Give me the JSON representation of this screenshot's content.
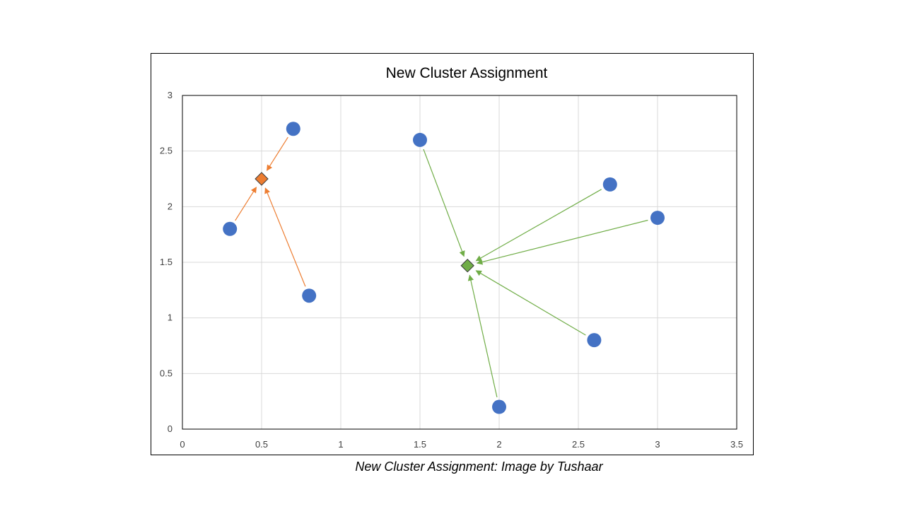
{
  "chart_data": {
    "type": "scatter",
    "title": "New Cluster Assignment",
    "xlim": [
      0,
      3.5
    ],
    "ylim": [
      0,
      3
    ],
    "x_ticks": [
      "0",
      "0.5",
      "1",
      "1.5",
      "2",
      "2.5",
      "3",
      "3.5"
    ],
    "y_ticks": [
      "0",
      "0.5",
      "1",
      "1.5",
      "2",
      "2.5",
      "3"
    ],
    "grid": true,
    "points": [
      {
        "x": 0.7,
        "y": 2.7
      },
      {
        "x": 0.3,
        "y": 1.8
      },
      {
        "x": 0.8,
        "y": 1.2
      },
      {
        "x": 1.5,
        "y": 2.6
      },
      {
        "x": 2.7,
        "y": 2.2
      },
      {
        "x": 3.0,
        "y": 1.9
      },
      {
        "x": 2.6,
        "y": 0.8
      },
      {
        "x": 2.0,
        "y": 0.2
      }
    ],
    "centroids": [
      {
        "x": 0.5,
        "y": 2.25,
        "color": "#ED7D31"
      },
      {
        "x": 1.8,
        "y": 1.47,
        "color": "#70AD47"
      }
    ],
    "assignments": [
      0,
      0,
      0,
      1,
      1,
      1,
      1,
      1
    ],
    "colors": {
      "point": "#4472C4",
      "grid": "#D9D9D9",
      "axis": "#000000"
    }
  },
  "caption": "New Cluster Assignment: Image by Tushaar"
}
